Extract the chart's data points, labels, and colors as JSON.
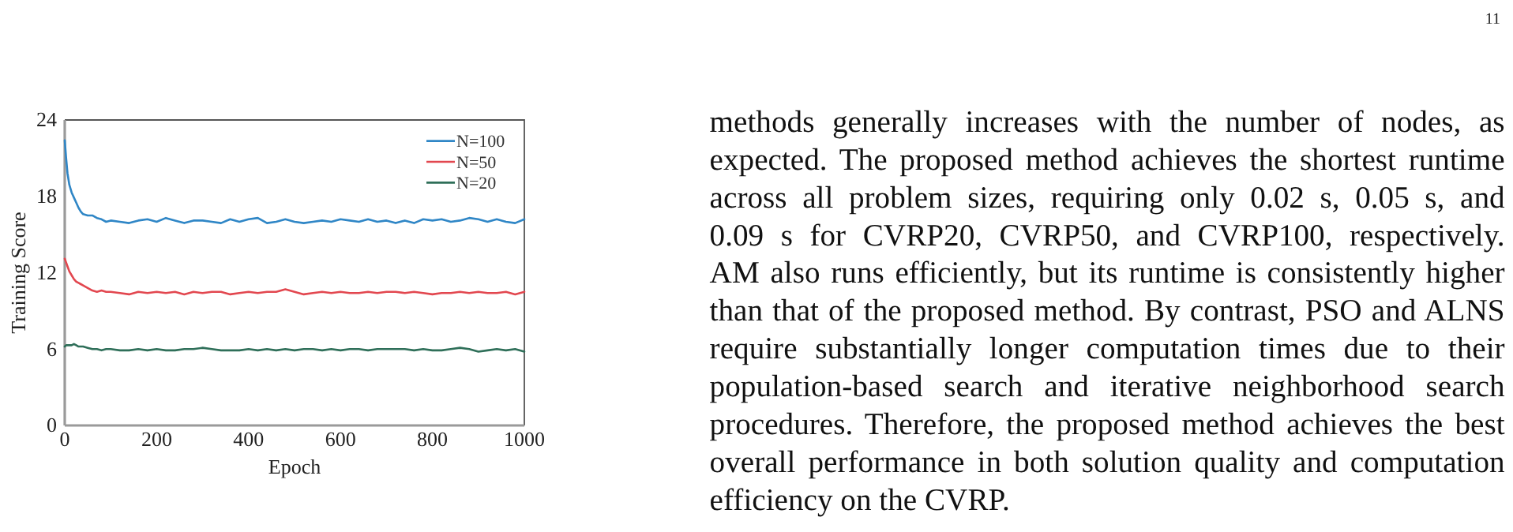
{
  "chart_data": {
    "type": "line",
    "xlabel": "Epoch",
    "ylabel": "Training Score",
    "x": [
      0,
      3,
      6,
      10,
      15,
      20,
      25,
      30,
      35,
      40,
      50,
      60,
      70,
      80,
      90,
      100,
      120,
      140,
      160,
      180,
      200,
      220,
      240,
      260,
      280,
      300,
      320,
      340,
      360,
      380,
      400,
      420,
      440,
      460,
      480,
      500,
      520,
      540,
      560,
      580,
      600,
      620,
      640,
      660,
      680,
      700,
      720,
      740,
      760,
      780,
      800,
      820,
      840,
      860,
      880,
      900,
      920,
      940,
      960,
      980,
      1000
    ],
    "series": [
      {
        "name": "N=100",
        "color": "#2f86c6",
        "values": [
          22.4,
          21.0,
          19.8,
          18.9,
          18.3,
          17.9,
          17.5,
          17.1,
          16.8,
          16.6,
          16.5,
          16.5,
          16.3,
          16.2,
          16.0,
          16.1,
          16.0,
          15.9,
          16.1,
          16.2,
          16.0,
          16.3,
          16.1,
          15.9,
          16.1,
          16.1,
          16.0,
          15.9,
          16.2,
          16.0,
          16.2,
          16.3,
          15.9,
          16.0,
          16.2,
          16.0,
          15.9,
          16.0,
          16.1,
          16.0,
          16.2,
          16.1,
          16.0,
          16.2,
          16.0,
          16.1,
          15.9,
          16.1,
          15.9,
          16.2,
          16.1,
          16.2,
          16.0,
          16.1,
          16.3,
          16.2,
          16.0,
          16.2,
          16.0,
          15.9,
          16.2
        ]
      },
      {
        "name": "N=50",
        "color": "#e2474f",
        "values": [
          13.1,
          12.8,
          12.5,
          12.1,
          11.8,
          11.5,
          11.3,
          11.2,
          11.1,
          11.0,
          10.8,
          10.6,
          10.5,
          10.6,
          10.5,
          10.5,
          10.4,
          10.3,
          10.5,
          10.4,
          10.5,
          10.4,
          10.5,
          10.3,
          10.5,
          10.4,
          10.5,
          10.5,
          10.3,
          10.4,
          10.5,
          10.4,
          10.5,
          10.5,
          10.7,
          10.5,
          10.3,
          10.4,
          10.5,
          10.4,
          10.5,
          10.4,
          10.4,
          10.5,
          10.4,
          10.5,
          10.5,
          10.4,
          10.5,
          10.4,
          10.3,
          10.4,
          10.4,
          10.5,
          10.4,
          10.5,
          10.4,
          10.4,
          10.5,
          10.3,
          10.5
        ]
      },
      {
        "name": "N=20",
        "color": "#2f6f59",
        "values": [
          6.2,
          6.3,
          6.3,
          6.3,
          6.3,
          6.4,
          6.3,
          6.2,
          6.2,
          6.2,
          6.1,
          6.0,
          6.0,
          5.9,
          6.0,
          6.0,
          5.9,
          5.9,
          6.0,
          5.9,
          6.0,
          5.9,
          5.9,
          6.0,
          6.0,
          6.1,
          6.0,
          5.9,
          5.9,
          5.9,
          6.0,
          5.9,
          6.0,
          5.9,
          6.0,
          5.9,
          6.0,
          6.0,
          5.9,
          6.0,
          5.9,
          6.0,
          6.0,
          5.9,
          6.0,
          6.0,
          6.0,
          6.0,
          5.9,
          6.0,
          5.9,
          5.9,
          6.0,
          6.1,
          6.0,
          5.8,
          5.9,
          6.0,
          5.9,
          6.0,
          5.8
        ]
      }
    ],
    "xlim": [
      0,
      1000
    ],
    "xticks": [
      0,
      200,
      400,
      600,
      800,
      1000
    ],
    "ylim": [
      0,
      24
    ],
    "yticks": [
      0,
      6,
      12,
      18,
      24
    ],
    "legend": "top right",
    "line_style": "solid",
    "annotations": [
      "11",
      "methods generally increases with the number of nodes, as",
      "expected. The proposed method achieves the shortest runtime",
      "across all problem sizes, requiring only 0.02 s, 0.05 s, and",
      "0.09 s for CVRP20, CVRP50, and CVRP100, respectively.",
      "AM also runs efficiently, but its runtime is consistently higher",
      "than that of the proposed method. By contrast, PSO and ALNS",
      "require substantially longer computation times due to their",
      "population-based search and iterative neighborhood search",
      "procedures. Therefore, the proposed method achieves the best",
      "overall performance in both solution quality and computation",
      "efficiency on the CVRP."
    ]
  }
}
